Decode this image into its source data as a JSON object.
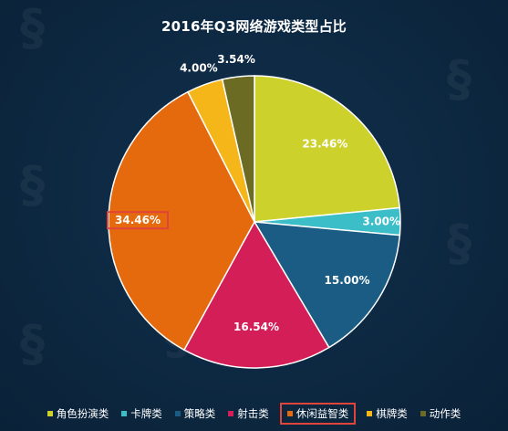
{
  "chart_data": {
    "type": "pie",
    "title": "2016年Q3网络游戏类型占比",
    "categories": [
      "角色扮演类",
      "卡牌类",
      "策略类",
      "射击类",
      "休闲益智类",
      "棋牌类",
      "动作类"
    ],
    "values": [
      23.46,
      3.0,
      15.0,
      16.54,
      34.46,
      4.0,
      3.54
    ],
    "labels": [
      "23.46%",
      "3.00%",
      "15.00%",
      "16.54%",
      "34.46%",
      "4.00%",
      "3.54%"
    ],
    "colors": [
      "#cdd12c",
      "#3cbec8",
      "#1a5c83",
      "#d41e57",
      "#e56a0d",
      "#f4b619",
      "#6b6b23"
    ],
    "highlighted": "休闲益智类",
    "legend_position": "bottom"
  }
}
